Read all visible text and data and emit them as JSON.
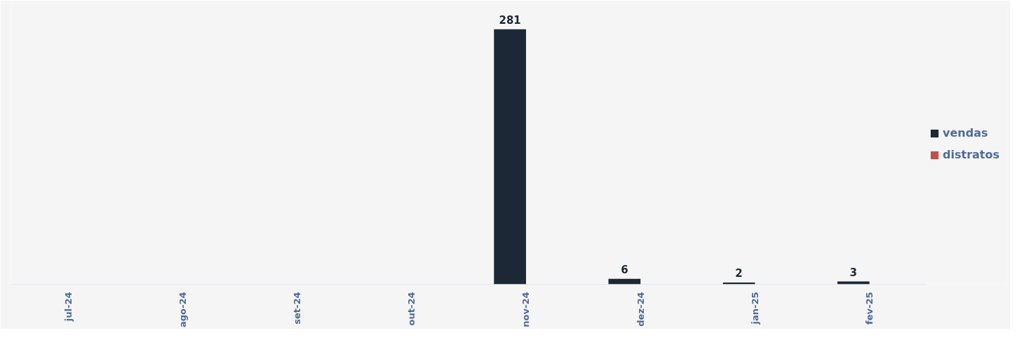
{
  "chart_data": {
    "type": "bar",
    "categories": [
      "jul-24",
      "ago-24",
      "set-24",
      "out-24",
      "nov-24",
      "dez-24",
      "jan-25",
      "fev-25"
    ],
    "series": [
      {
        "name": "vendas",
        "color": "#1d2836",
        "values": [
          null,
          null,
          null,
          null,
          281,
          6,
          2,
          3
        ]
      },
      {
        "name": "distratos",
        "color": "#c0504d",
        "values": [
          null,
          null,
          null,
          null,
          null,
          null,
          null,
          null
        ]
      }
    ],
    "data_labels": true,
    "legend": "right",
    "grid": false
  }
}
